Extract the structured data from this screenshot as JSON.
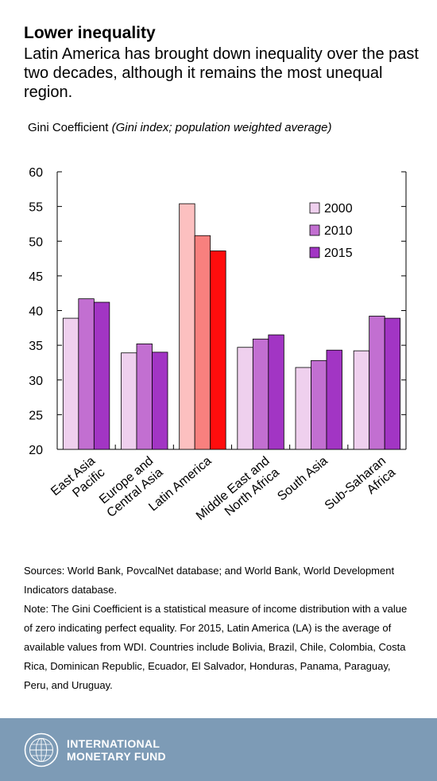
{
  "header": {
    "title": "Lower inequality",
    "subtitle": "Latin America has brought down inequality over the past two decades, although it remains the most unequal region."
  },
  "chart_data": {
    "type": "bar",
    "title": "",
    "ylabel_main": "Gini Coefficient",
    "ylabel_note": "(Gini index; population weighted average)",
    "xlabel": "",
    "ylim": [
      20,
      60
    ],
    "yticks": [
      20,
      25,
      30,
      35,
      40,
      45,
      50,
      55,
      60
    ],
    "categories": [
      [
        "East Asia",
        "Pacific"
      ],
      [
        "Europe and",
        "Central Asia"
      ],
      [
        "Latin America"
      ],
      [
        "Middle East and",
        "North Africa"
      ],
      [
        "South Asia"
      ],
      [
        "Sub-Saharan",
        "Africa"
      ]
    ],
    "series": [
      {
        "name": "2000",
        "values": [
          38.9,
          33.9,
          55.4,
          34.7,
          31.8,
          34.2
        ]
      },
      {
        "name": "2010",
        "values": [
          41.7,
          35.2,
          50.8,
          35.9,
          32.8,
          39.2
        ]
      },
      {
        "name": "2015",
        "values": [
          41.2,
          34.0,
          48.6,
          36.5,
          34.3,
          38.9
        ]
      }
    ],
    "series_colors": [
      "#efd0ee",
      "#c26fd1",
      "#a235c4"
    ],
    "highlight_category": 2,
    "highlight_colors": [
      "#fcc0c0",
      "#f8807e",
      "#ff0d0d"
    ],
    "legend_position": "top-right",
    "grid": false
  },
  "notes": {
    "sources": "Sources: World Bank, PovcalNet database; and World Bank, World Development Indicators database.",
    "note": "Note: The Gini Coefficient is a statistical measure of income distribution with a value of zero indicating perfect equality. For 2015, Latin America (LA) is the average of available values from WDI. Countries include Bolivia, Brazil, Chile, Colombia, Costa Rica, Dominican Republic, Ecuador, El Salvador, Honduras, Panama, Paraguay, Peru, and Uruguay."
  },
  "footer": {
    "org_line1": "INTERNATIONAL",
    "org_line2": "MONETARY FUND",
    "logo_icon": "imf-seal-icon"
  }
}
